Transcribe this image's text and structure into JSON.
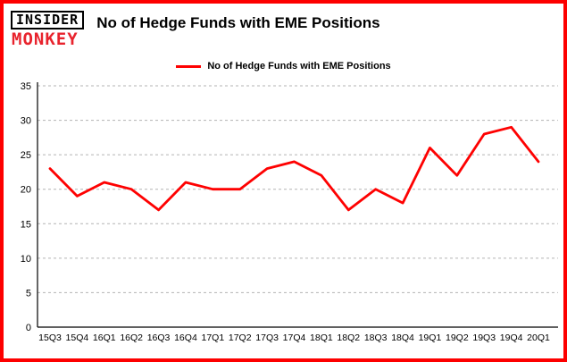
{
  "header": {
    "logo_top": "INSIDER",
    "logo_bottom": "MONKEY",
    "title": "No of Hedge Funds with EME Positions"
  },
  "legend": {
    "label": "No of Hedge Funds with EME Positions"
  },
  "chart_data": {
    "type": "line",
    "title": "No of Hedge Funds with EME Positions",
    "categories": [
      "15Q3",
      "15Q4",
      "16Q1",
      "16Q2",
      "16Q3",
      "16Q4",
      "17Q1",
      "17Q2",
      "17Q3",
      "17Q4",
      "18Q1",
      "18Q2",
      "18Q3",
      "18Q4",
      "19Q1",
      "19Q2",
      "19Q3",
      "19Q4",
      "20Q1"
    ],
    "values": [
      23,
      19,
      21,
      20,
      17,
      21,
      20,
      20,
      23,
      24,
      22,
      17,
      20,
      18,
      26,
      22,
      28,
      29,
      24
    ],
    "xlabel": "",
    "ylabel": "",
    "ylim": [
      0,
      35
    ],
    "yticks": [
      0,
      5,
      10,
      15,
      20,
      25,
      30,
      35
    ],
    "grid": true,
    "grid_style": "dashed",
    "legend_position": "top",
    "line_color": "#fe0101"
  },
  "colors": {
    "frame_red": "#fd0000",
    "logo_red": "#e8232d",
    "line_red": "#fe0101",
    "grid_gray": "#b3b3b3",
    "axis_black": "#000000"
  }
}
